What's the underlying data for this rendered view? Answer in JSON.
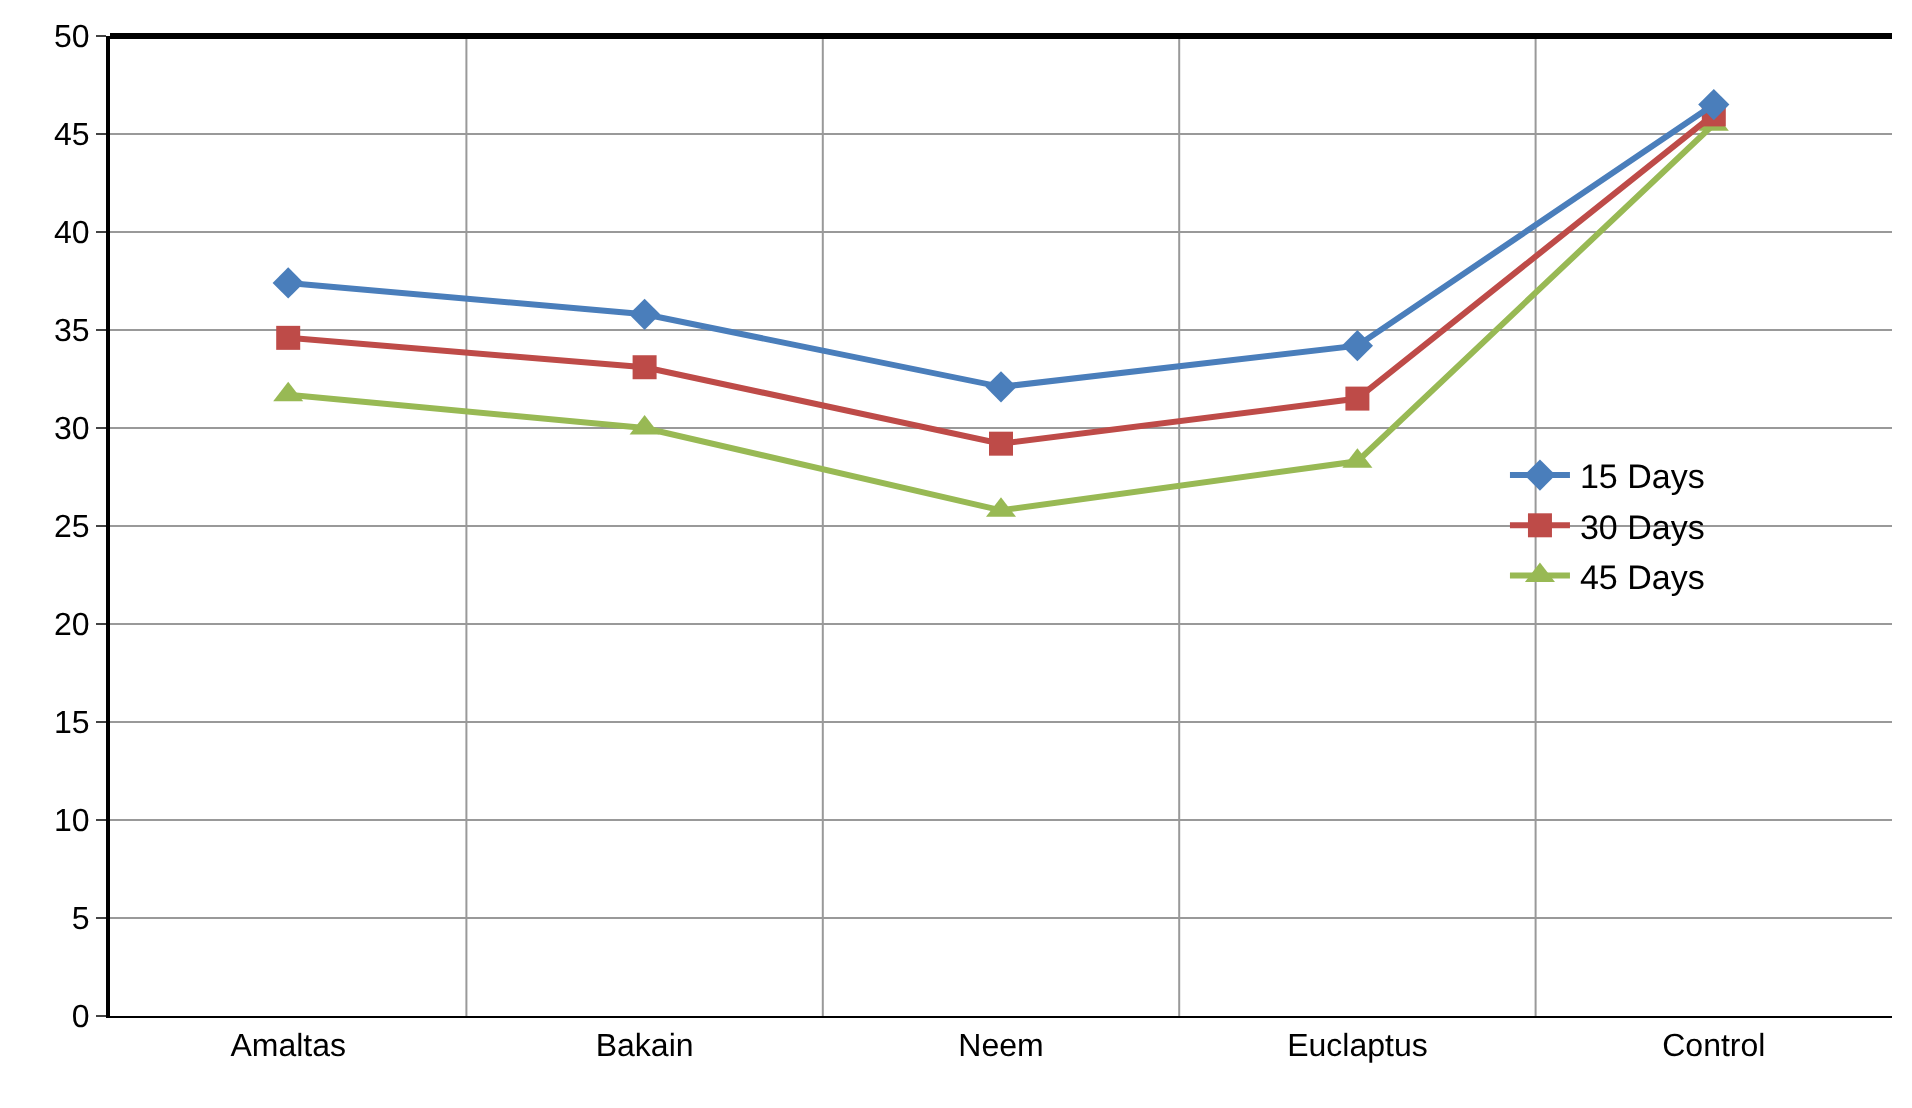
{
  "chart_data": {
    "type": "line",
    "categories": [
      "Amaltas",
      "Bakain",
      "Neem",
      "Euclaptus",
      "Control"
    ],
    "series": [
      {
        "name": "15 Days",
        "color": "#4a7ebb",
        "marker": "diamond",
        "values": [
          37.4,
          35.8,
          32.1,
          34.2,
          46.5
        ]
      },
      {
        "name": "30 Days",
        "color": "#be4b48",
        "marker": "square",
        "values": [
          34.6,
          33.1,
          29.2,
          31.5,
          46.0
        ]
      },
      {
        "name": "45 Days",
        "color": "#98b954",
        "marker": "triangle",
        "values": [
          31.7,
          30.0,
          25.8,
          28.3,
          45.5
        ]
      }
    ],
    "ylim": [
      0,
      50
    ],
    "yticks": [
      0,
      5,
      10,
      15,
      20,
      25,
      30,
      35,
      40,
      45,
      50
    ],
    "grid": true,
    "legend": "right",
    "line_style": "solid"
  }
}
